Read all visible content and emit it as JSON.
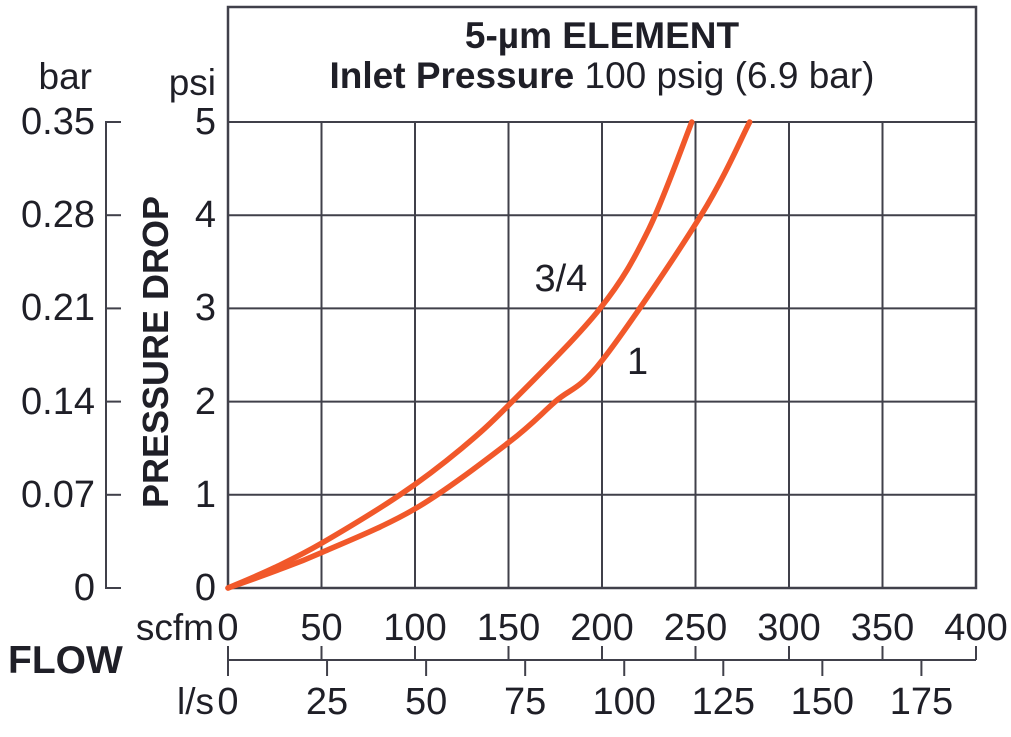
{
  "chart_data": {
    "type": "line",
    "title": "5-µm ELEMENT",
    "subtitle": {
      "bold": "Inlet Pressure",
      "regular": " 100 psig (6.9 bar)"
    },
    "y_axis": {
      "label": "PRESSURE DROP",
      "primary_unit": "psi",
      "primary_ticks": [
        5,
        4,
        3,
        2,
        1,
        0
      ],
      "secondary_unit": "bar",
      "secondary_ticks": [
        "0.35",
        "0.28",
        "0.21",
        "0.14",
        "0.07",
        "0"
      ],
      "ylim_psi": [
        0,
        5
      ]
    },
    "x_axis": {
      "label": "FLOW",
      "primary_unit": "scfm",
      "primary_ticks": [
        0,
        50,
        100,
        150,
        200,
        250,
        300,
        350,
        400
      ],
      "secondary_unit": "l/s",
      "secondary_ticks": [
        0,
        25,
        50,
        75,
        100,
        125,
        150,
        175
      ],
      "xlim_scfm": [
        0,
        400
      ],
      "scfm_per_l_s": 2.1189
    },
    "grid": true,
    "legend_position": "labels-on-curves",
    "series": [
      {
        "name": "3/4",
        "points_scfm_psi": [
          [
            0,
            0
          ],
          [
            25,
            0.22
          ],
          [
            50,
            0.48
          ],
          [
            92,
            1.0
          ],
          [
            125,
            1.5
          ],
          [
            152,
            2.0
          ],
          [
            199,
            3.0
          ],
          [
            225,
            3.85
          ],
          [
            248,
            5.0
          ]
        ],
        "label_at_scfm_psi": [
          178,
          3.32
        ]
      },
      {
        "name": "1",
        "points_scfm_psi": [
          [
            0,
            0
          ],
          [
            25,
            0.18
          ],
          [
            50,
            0.38
          ],
          [
            100,
            0.85
          ],
          [
            150,
            1.56
          ],
          [
            175,
            2.0
          ],
          [
            200,
            2.44
          ],
          [
            253,
            4.0
          ],
          [
            279,
            5.0
          ]
        ],
        "label_at_scfm_psi": [
          219,
          2.42
        ]
      }
    ],
    "colors": {
      "curve": "#f1582a",
      "grid": "#40404a",
      "frame": "#40404a",
      "text": "#1f1f27"
    }
  }
}
